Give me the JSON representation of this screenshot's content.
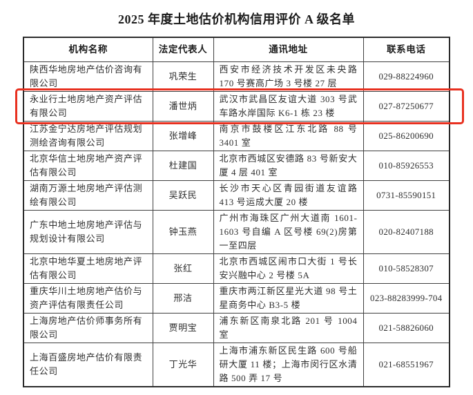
{
  "title": "2025 年度土地估价机构信用评价 A 级名单",
  "colors": {
    "highlight_red": "#e8301f",
    "table_border": "#3f3f3f",
    "text": "#2e2e2e"
  },
  "table": {
    "headers": {
      "org": "机构名称",
      "rep": "法定代表人",
      "addr": "通讯地址",
      "phone": "联系电话"
    },
    "rows": [
      {
        "org": "陕西华地房地产估价咨询有限公司",
        "rep": "巩荣生",
        "addr": "西安市经济技术开发区未央路 170 号赛高广场 3 号楼 27 层",
        "phone": "029-88224960",
        "highlighted": false
      },
      {
        "org": "永业行土地房地产资产评估有限公司",
        "rep": "潘世炳",
        "addr": "武汉市武昌区友谊大道 303 号武车路水岸国际 K6-1 栋 23 楼",
        "phone": "027-87250677",
        "highlighted": true
      },
      {
        "org": "江苏金宁达房地产评估规划测绘咨询有限公司",
        "rep": "张增峰",
        "addr": "南京市鼓楼区江东北路 88 号 3401 室",
        "phone": "025-86200690",
        "highlighted": false
      },
      {
        "org": "北京华信土地房地产资产评估有限公司",
        "rep": "杜建国",
        "addr": "北京市西城区安德路 83 号新安大厦 4 层 401 室",
        "phone": "010-85926553",
        "highlighted": false
      },
      {
        "org": "湖南万源土地房地产评估测绘有限公司",
        "rep": "吴跃民",
        "addr": "长沙市天心区青园街道友谊路 413 号运成大厦 20 楼",
        "phone": "0731-85590151",
        "highlighted": false
      },
      {
        "org": "广东中地土地房地产评估与规划设计有限公司",
        "rep": "钟玉燕",
        "addr": "广州市海珠区广州大道南 1601-1603 号自编 A 区号楼 69(2)房第一至四层",
        "phone": "020-82407188",
        "highlighted": false
      },
      {
        "org": "北京中地华夏土地房地产评估有限公司",
        "rep": "张红",
        "addr": "北京市西城区闹市口大街 1 号长安兴融中心 2 号楼 5A",
        "phone": "010-58528307",
        "highlighted": false
      },
      {
        "org": "重庆华川土地房地产估价与资产评估有限责任公司",
        "rep": "邢洁",
        "addr": "重庆市两江新区星光大道 98 号土星商务中心 B3-5 楼",
        "phone": "023-88283999-704",
        "highlighted": false
      },
      {
        "org": "上海房地产估价师事务所有限公司",
        "rep": "贾明宝",
        "addr": "浦东新区南泉北路 201 号 1004 室",
        "phone": "021-58826060",
        "highlighted": false
      },
      {
        "org": "上海百盛房地产估价有限责任公司",
        "rep": "丁光华",
        "addr": "上海市浦东新区民生路 600 号船研大厦 11 楼；上海市闵行区水清路 500 弄 17 号",
        "phone": "021-68551967",
        "highlighted": false
      }
    ]
  }
}
